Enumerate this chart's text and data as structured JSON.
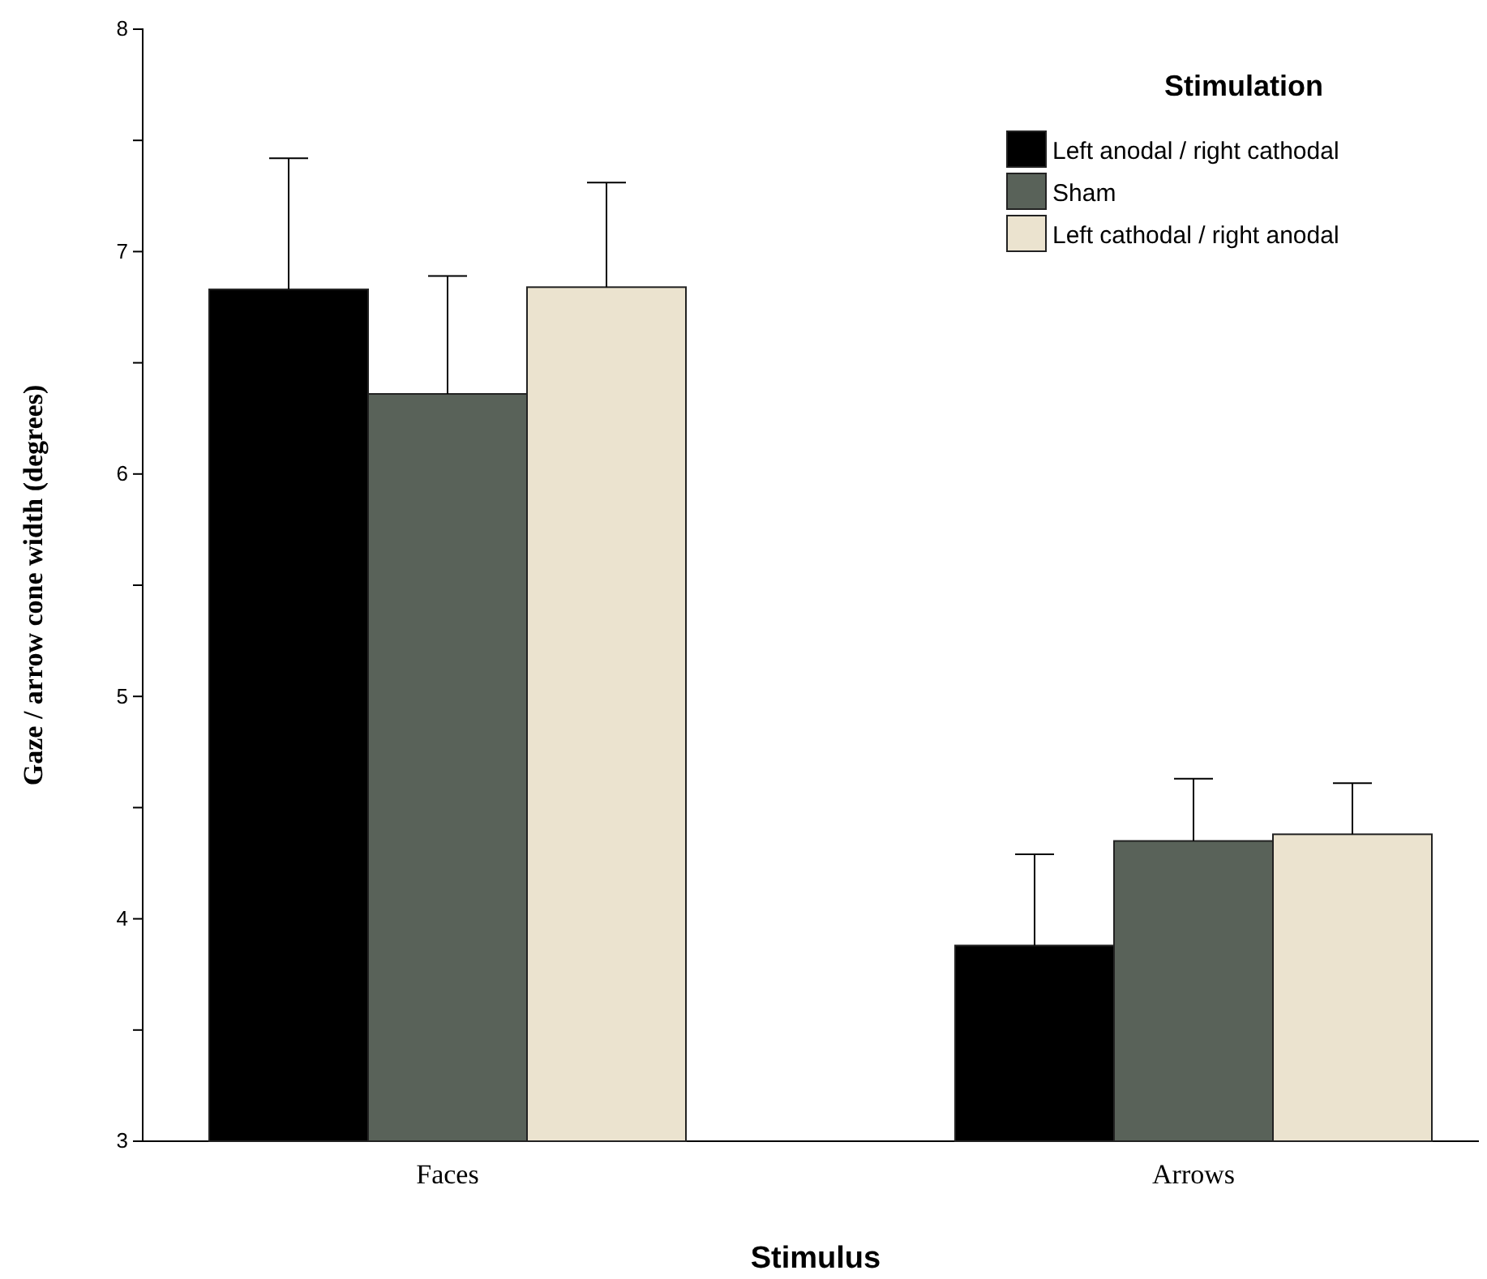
{
  "chart_data": {
    "type": "bar",
    "xlabel": "Stimulus",
    "ylabel": "Gaze / arrow cone width (degrees)",
    "legend_title": "Stimulation",
    "categories": [
      "Faces",
      "Arrows"
    ],
    "series": [
      {
        "name": "Left anodal / right cathodal",
        "color": "#000000",
        "values": [
          6.83,
          3.88
        ],
        "errors": [
          [
            6.83,
            7.42
          ],
          [
            3.88,
            4.29
          ]
        ]
      },
      {
        "name": "Sham",
        "color": "#596259",
        "values": [
          6.36,
          4.35
        ],
        "errors": [
          [
            6.36,
            6.89
          ],
          [
            4.35,
            4.63
          ]
        ]
      },
      {
        "name": "Left cathodal / right anodal",
        "color": "#ebe3cf",
        "values": [
          6.84,
          4.38
        ],
        "errors": [
          [
            6.84,
            7.31
          ],
          [
            4.38,
            4.61
          ]
        ]
      }
    ],
    "ylim": [
      3,
      8
    ],
    "yticks": [
      3,
      {
        "value": 3.5,
        "label": null
      },
      4,
      {
        "value": 4.5,
        "label": null
      },
      5,
      {
        "value": 5.5,
        "label": null
      },
      6,
      {
        "value": 6.5,
        "label": null
      },
      7,
      {
        "value": 7.5,
        "label": null
      },
      8
    ],
    "legend": "top right"
  }
}
